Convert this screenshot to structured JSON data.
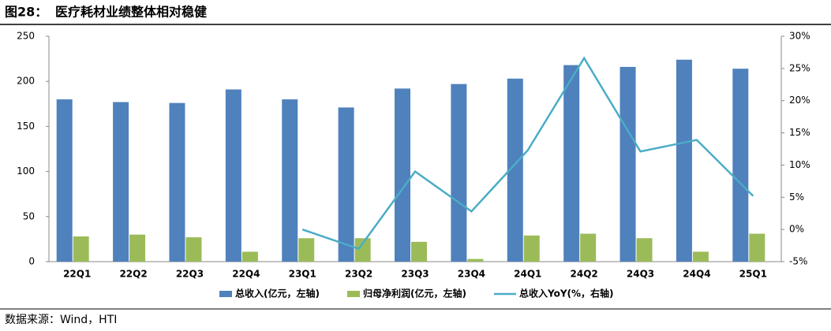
{
  "chart_data": {
    "type": "bar_line",
    "figure_label": "图28：",
    "title": "医疗耗材业绩整体相对稳健",
    "source": "数据来源：Wind，HTI",
    "categories": [
      "22Q1",
      "22Q2",
      "22Q3",
      "22Q4",
      "23Q1",
      "23Q2",
      "23Q3",
      "23Q4",
      "24Q1",
      "24Q2",
      "24Q3",
      "24Q4",
      "25Q1"
    ],
    "series": [
      {
        "name": "总收入(亿元，左轴)",
        "type": "bar",
        "color": "#4f81bd",
        "values": [
          180,
          177,
          176,
          191,
          180,
          171,
          192,
          197,
          203,
          218,
          216,
          224,
          214
        ]
      },
      {
        "name": "归母净利润(亿元，左轴)",
        "type": "bar",
        "color": "#9bbb59",
        "values": [
          28,
          30,
          27,
          11,
          26,
          26,
          22,
          3,
          29,
          31,
          26,
          11,
          31
        ]
      },
      {
        "name": "总收入YoY(%，右轴)",
        "type": "line",
        "axis": "y2",
        "color": "#4bacc6",
        "values": [
          null,
          null,
          null,
          null,
          0,
          -3,
          9,
          2.8,
          12.3,
          26.6,
          12.1,
          13.9,
          5.2
        ]
      }
    ],
    "ylim": [
      0,
      250
    ],
    "yticks": [
      0,
      50,
      100,
      150,
      200,
      250
    ],
    "y2lim": [
      -5,
      30
    ],
    "y2ticks": [
      {
        "value": -5,
        "label": "-5%"
      },
      {
        "value": 0,
        "label": "0%"
      },
      {
        "value": 5,
        "label": "5%"
      },
      {
        "value": 10,
        "label": "10%"
      },
      {
        "value": 15,
        "label": "15%"
      },
      {
        "value": 20,
        "label": "20%"
      },
      {
        "value": 25,
        "label": "25%"
      },
      {
        "value": 30,
        "label": "30%"
      }
    ]
  }
}
